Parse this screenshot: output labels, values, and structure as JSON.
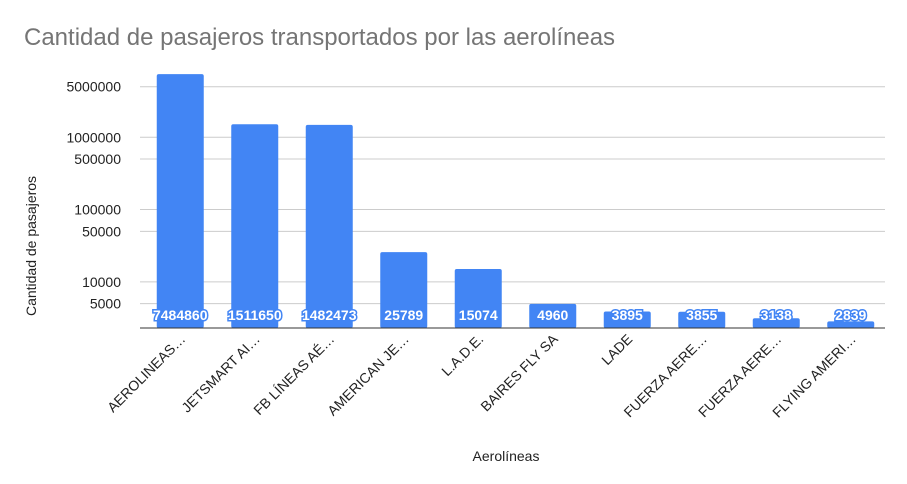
{
  "chart_data": {
    "type": "bar",
    "title": "Cantidad de pasajeros transportados por las aerolíneas",
    "xlabel": "Aerolíneas",
    "ylabel": "Cantidad de pasajeros",
    "scale": "log",
    "ylim": [
      2300,
      7500000
    ],
    "y_ticks": [
      5000,
      10000,
      50000,
      100000,
      500000,
      1000000,
      5000000
    ],
    "y_tick_labels": [
      "5000",
      "10000",
      "50000",
      "100000",
      "500000",
      "1000000",
      "5000000"
    ],
    "grid": true,
    "legend": "none",
    "bar_color": "#4285f4",
    "categories": [
      "AEROLINEAS…",
      "JETSMART AI…",
      "FB LÍNEAS AÉ…",
      "AMERICAN JE…",
      "L.A.D.E.",
      "BAIRES FLY SA",
      "LADE",
      "FUERZA AERE…",
      "FUERZA AERE…",
      "FLYING AMERI…"
    ],
    "values": [
      7484860,
      1511650,
      1482473,
      25789,
      15074,
      4960,
      3895,
      3855,
      3138,
      2839
    ],
    "data_labels": [
      "7484860",
      "1511650",
      "1482473",
      "25789",
      "15074",
      "4960",
      "3895",
      "3855",
      "3138",
      "2839"
    ]
  }
}
